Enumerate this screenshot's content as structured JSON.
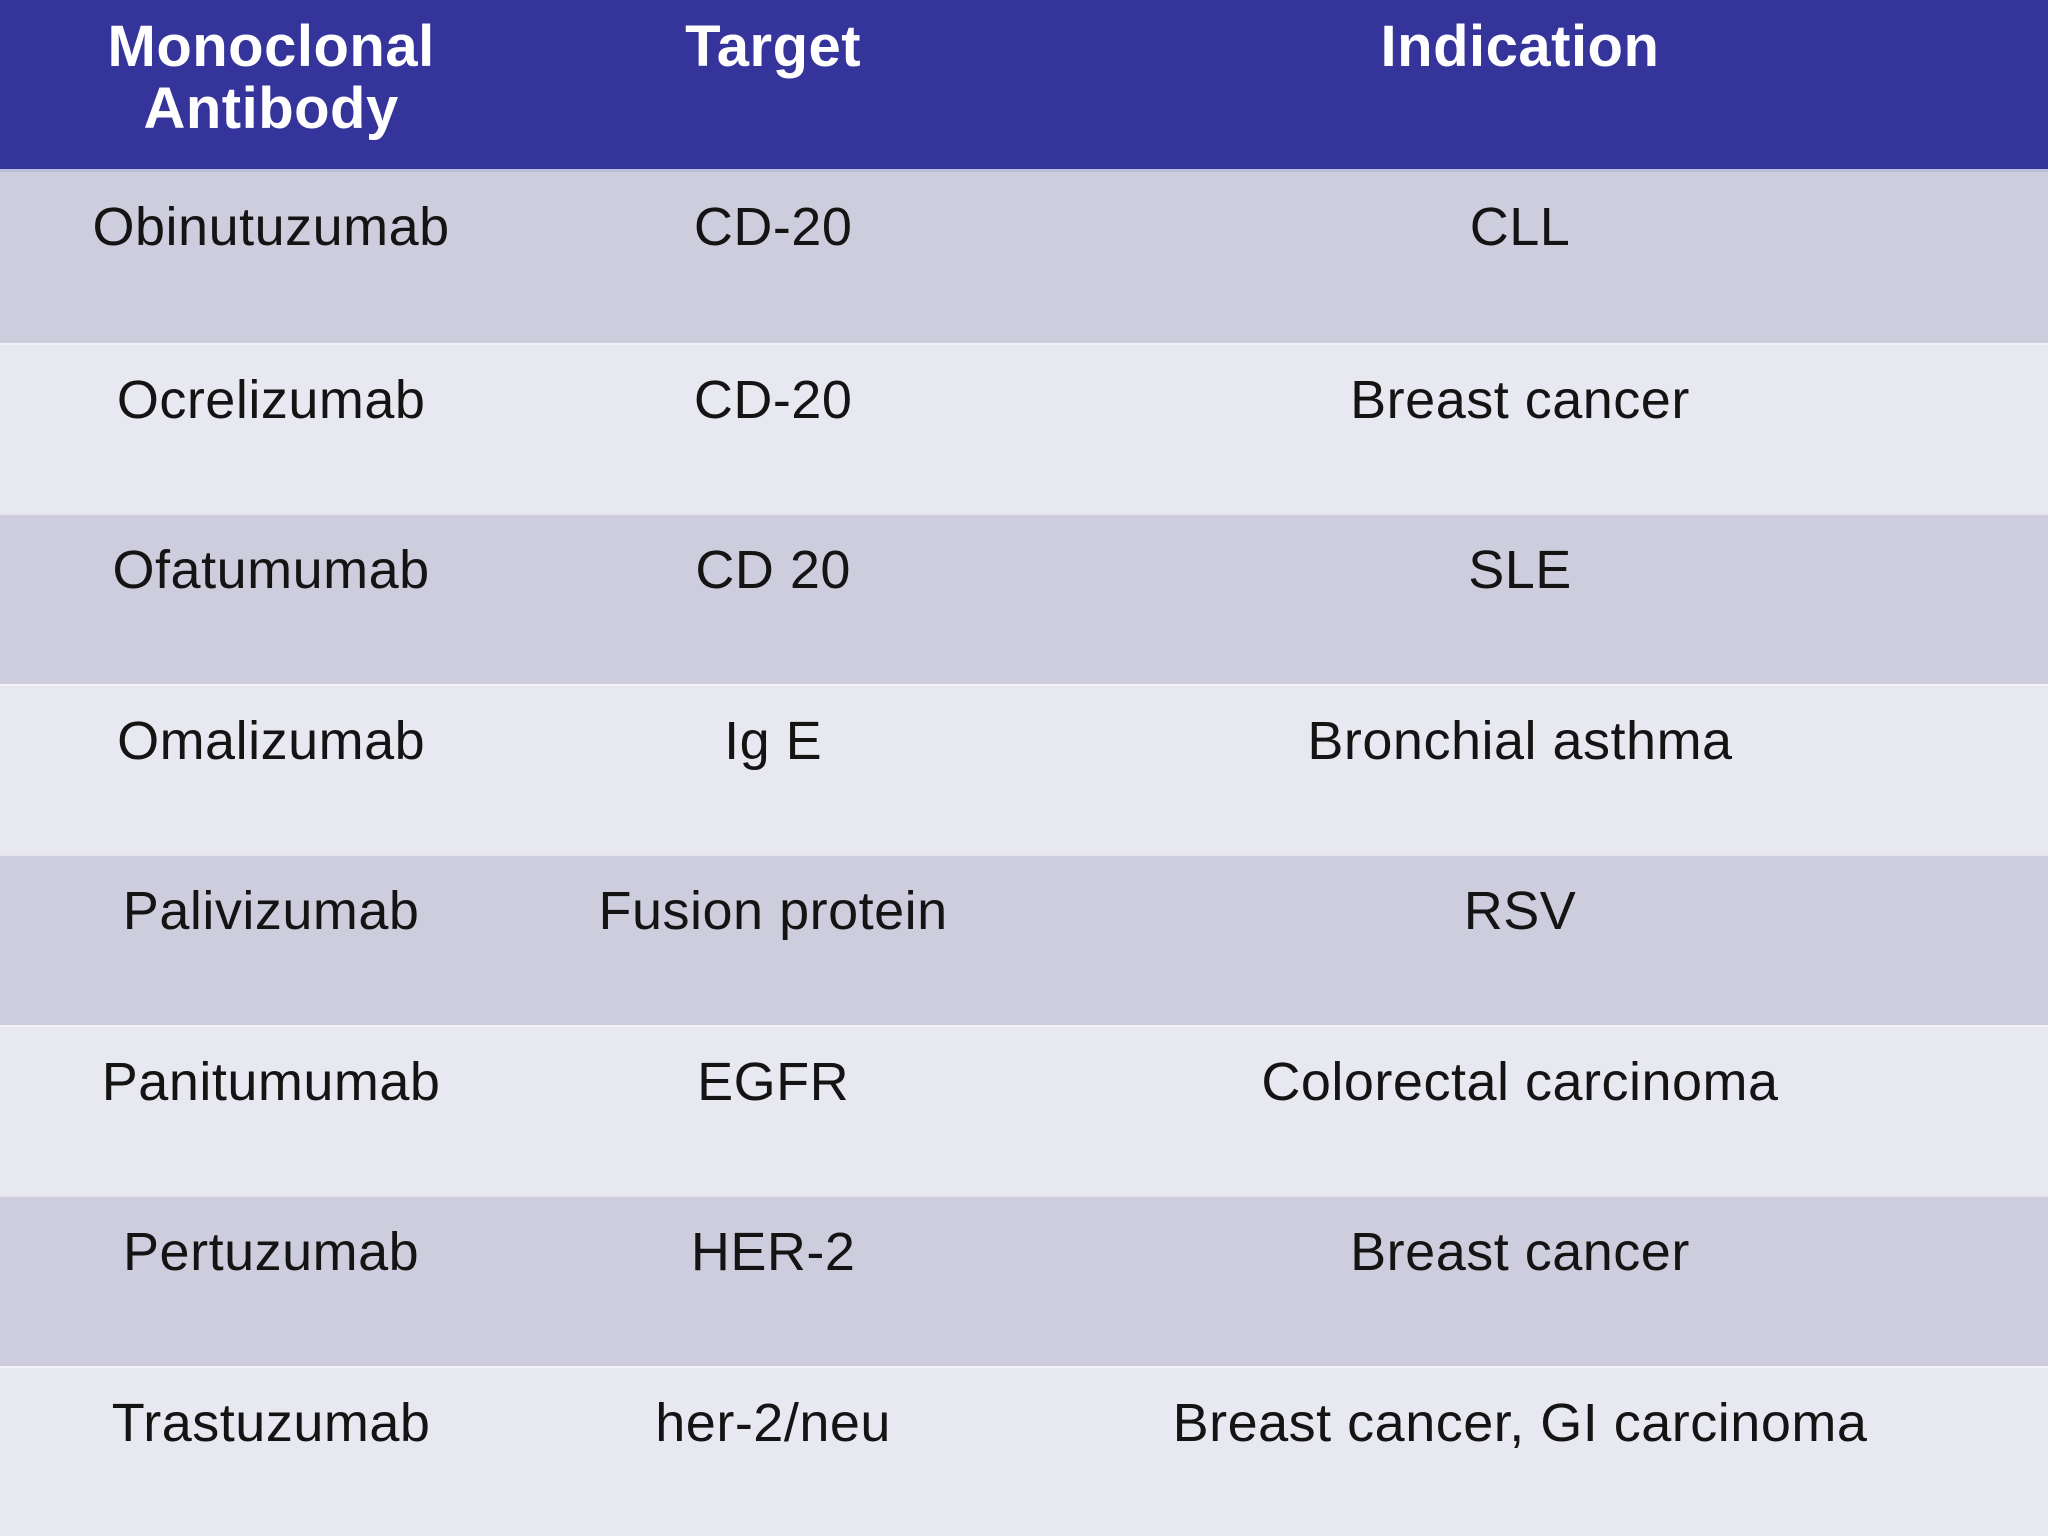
{
  "chart_data": {
    "type": "table",
    "title": "",
    "columns": [
      "Monoclonal Antibody",
      "Target",
      "Indication"
    ],
    "rows": [
      [
        "Obinutuzumab",
        "CD-20",
        "CLL"
      ],
      [
        "Ocrelizumab",
        "CD-20",
        "Breast cancer"
      ],
      [
        "Ofatumumab",
        "CD 20",
        "SLE"
      ],
      [
        "Omalizumab",
        "Ig E",
        "Bronchial asthma"
      ],
      [
        "Palivizumab",
        "Fusion protein",
        "RSV"
      ],
      [
        "Panitumumab",
        "EGFR",
        "Colorectal carcinoma"
      ],
      [
        "Pertuzumab",
        "HER-2",
        "Breast cancer"
      ],
      [
        "Trastuzumab",
        "her-2/neu",
        "Breast cancer, GI carcinoma"
      ]
    ],
    "layout": {
      "header_position": "top",
      "row_striping": "odd-dark-even-light",
      "grid": "off"
    }
  },
  "colors": {
    "header_bg": "#34349B",
    "header_text": "#FFFFFF",
    "row_dark": "#CECDDE",
    "row_light": "#E8E8F1",
    "body_text": "#141414",
    "separator": "#BDBDDD"
  }
}
